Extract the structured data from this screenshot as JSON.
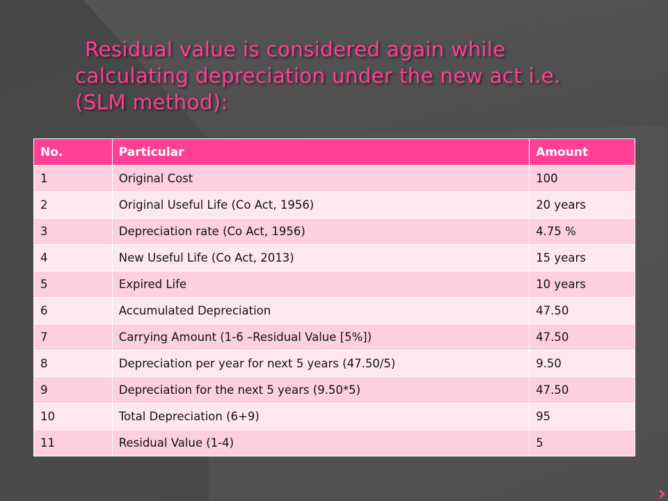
{
  "slide": {
    "title_lines": [
      "Residual value is considered again while",
      "calculating depreciation under the new act i.e.",
      "(SLM method):"
    ],
    "accent_color": "#ff3f93",
    "background_color": "#4f4f4f"
  },
  "table": {
    "headers": [
      "No.",
      "Particular",
      "Amount"
    ],
    "rows": [
      [
        "1",
        "Original Cost",
        "100"
      ],
      [
        "2",
        "Original Useful Life (Co Act, 1956)",
        "20 years"
      ],
      [
        "3",
        "Depreciation rate (Co Act, 1956)",
        "4.75 %"
      ],
      [
        "4",
        "New Useful Life (Co Act, 2013)",
        "15 years"
      ],
      [
        "5",
        "Expired Life",
        "10 years"
      ],
      [
        "6",
        "Accumulated Depreciation",
        "47.50"
      ],
      [
        "7",
        "Carrying Amount (1-6 –Residual Value [5%])",
        "47.50"
      ],
      [
        "8",
        "Depreciation per year for next 5 years (47.50/5)",
        "9.50"
      ],
      [
        "9",
        "Depreciation for the next 5 years (9.50*5)",
        "47.50"
      ],
      [
        "10",
        "Total Depreciation (6+9)",
        "95"
      ],
      [
        "11",
        "Residual Value (1-4)",
        "5"
      ]
    ]
  },
  "icons": {
    "nav": "chevron-right-icon",
    "background": "diagonal-ribbon-shape"
  }
}
